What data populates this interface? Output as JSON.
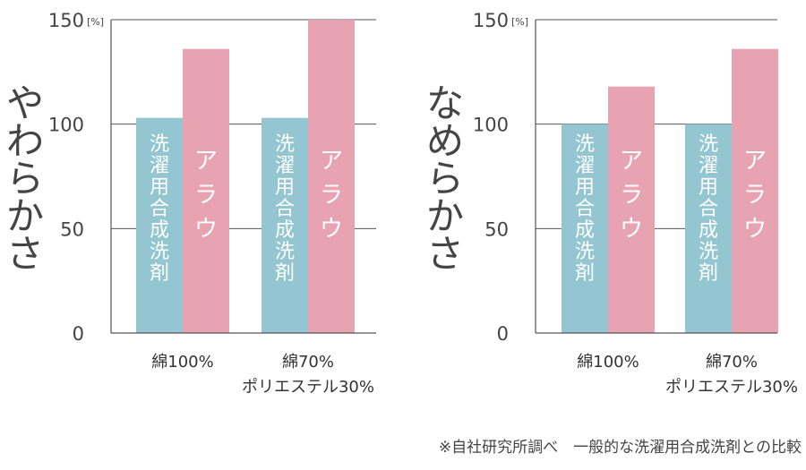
{
  "chart_data": [
    {
      "type": "bar",
      "ylabel": "やわらかさ",
      "unit": "[%]",
      "ylim": [
        0,
        150
      ],
      "yticks": [
        0,
        50,
        100,
        150
      ],
      "grid": true,
      "categories": [
        {
          "lines": [
            "綿100%"
          ]
        },
        {
          "lines": [
            "綿70%",
            "ポリエステル30%"
          ]
        }
      ],
      "series": [
        {
          "name": "洗濯用合成洗剤",
          "color": "#94c6d2",
          "values": [
            103,
            103
          ]
        },
        {
          "name": "アラウ",
          "color": "#e8a3b3",
          "values": [
            136,
            150
          ]
        }
      ]
    },
    {
      "type": "bar",
      "ylabel": "なめらかさ",
      "unit": "[%]",
      "ylim": [
        0,
        150
      ],
      "yticks": [
        0,
        50,
        100,
        150
      ],
      "grid": true,
      "categories": [
        {
          "lines": [
            "綿100%"
          ]
        },
        {
          "lines": [
            "綿70%",
            "ポリエステル30%"
          ]
        }
      ],
      "series": [
        {
          "name": "洗濯用合成洗剤",
          "color": "#94c6d2",
          "values": [
            100,
            100
          ]
        },
        {
          "name": "アラウ",
          "color": "#e8a3b3",
          "values": [
            118,
            136
          ]
        }
      ]
    }
  ],
  "footnote": "※自社研究所調べ　一般的な洗濯用合成洗剤との比較"
}
